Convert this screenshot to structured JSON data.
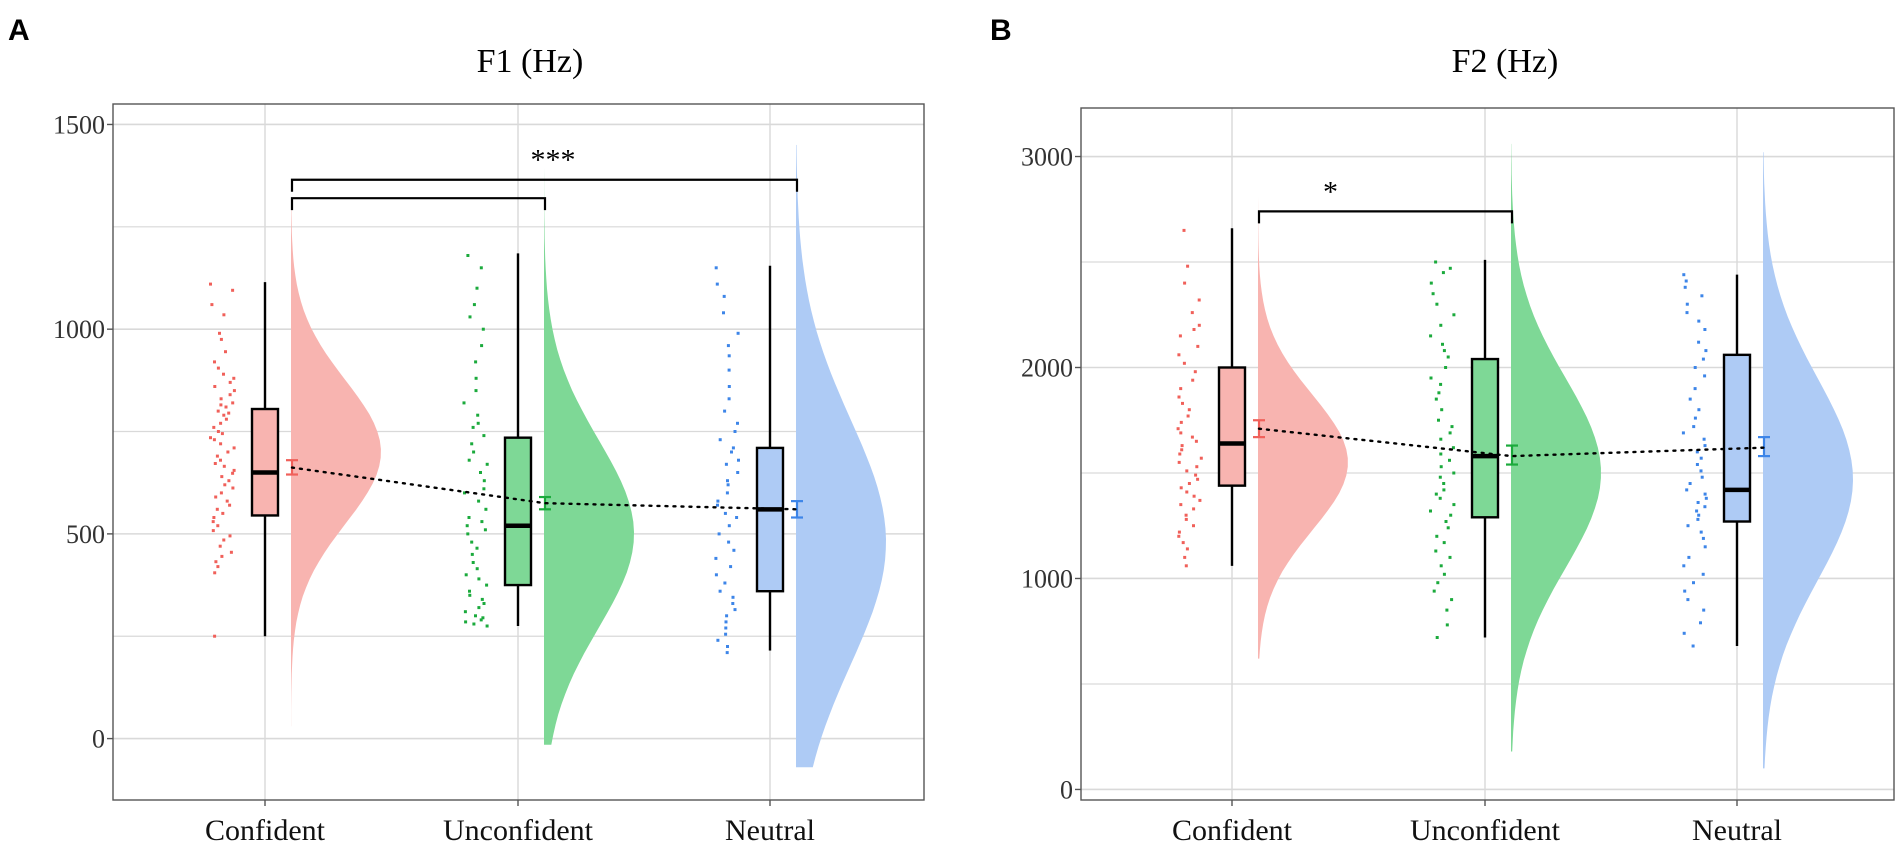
{
  "colors": {
    "confident": "#F0605A",
    "unconfident": "#1BAA3C",
    "neutral": "#3D85E8",
    "confident_fill": "#F8B4B0",
    "unconfident_fill": "#7ED896",
    "neutral_fill": "#AECBF5",
    "grid": "#d9d9d9"
  },
  "chart_data": [
    {
      "type": "raincloud",
      "panel_label": "A",
      "title": "F1 (Hz)",
      "xlabel": "",
      "ylabel": "",
      "ylim": [
        -150,
        1550
      ],
      "yticks": [
        0,
        500,
        1000,
        1500
      ],
      "ytick_labels": [
        "0",
        "500",
        "1000",
        "1500"
      ],
      "minor_gridlines": [
        250,
        750,
        1250
      ],
      "grid": true,
      "categories": [
        "Confident",
        "Unconfident",
        "Neutral"
      ],
      "series": [
        {
          "name": "Confident",
          "box": {
            "whisker_low": 250,
            "q1": 545,
            "median": 650,
            "q3": 805,
            "whisker_high": 1115
          },
          "mean": 662,
          "ci": [
            645,
            680
          ],
          "density": {
            "min": 30,
            "max": 1300,
            "mode": 700,
            "sd": 175
          },
          "points": [
            1110,
            1095,
            1060,
            1035,
            990,
            975,
            945,
            920,
            905,
            890,
            880,
            870,
            860,
            850,
            840,
            830,
            820,
            815,
            810,
            800,
            795,
            790,
            780,
            770,
            760,
            750,
            745,
            735,
            730,
            720,
            710,
            700,
            690,
            680,
            672,
            665,
            655,
            648,
            640,
            630,
            620,
            612,
            600,
            590,
            580,
            570,
            560,
            550,
            540,
            530,
            520,
            508,
            495,
            485,
            470,
            455,
            445,
            432,
            420,
            405,
            250
          ]
        },
        {
          "name": "Unconfident",
          "box": {
            "whisker_low": 275,
            "q1": 375,
            "median": 520,
            "q3": 735,
            "whisker_high": 1185
          },
          "mean": 575,
          "ci": [
            560,
            590
          ],
          "density": {
            "min": -15,
            "max": 1470,
            "mode": 500,
            "sd": 230
          },
          "points": [
            1180,
            1150,
            1100,
            1060,
            1030,
            1000,
            960,
            920,
            880,
            850,
            820,
            790,
            770,
            760,
            740,
            720,
            700,
            680,
            670,
            650,
            630,
            610,
            600,
            580,
            560,
            540,
            530,
            520,
            510,
            500,
            480,
            465,
            450,
            430,
            415,
            400,
            390,
            375,
            360,
            350,
            340,
            330,
            320,
            310,
            300,
            295,
            290,
            285,
            280,
            275
          ]
        },
        {
          "name": "Neutral",
          "box": {
            "whisker_low": 215,
            "q1": 360,
            "median": 560,
            "q3": 710,
            "whisker_high": 1155
          },
          "mean": 560,
          "ci": [
            540,
            580
          ],
          "density": {
            "min": -70,
            "max": 1450,
            "mode": 480,
            "sd": 300
          },
          "points": [
            1150,
            1110,
            1080,
            1040,
            990,
            960,
            935,
            900,
            860,
            830,
            800,
            770,
            750,
            730,
            710,
            700,
            680,
            670,
            650,
            630,
            620,
            600,
            580,
            570,
            550,
            540,
            520,
            500,
            480,
            460,
            440,
            420,
            400,
            380,
            360,
            345,
            330,
            315,
            300,
            285,
            270,
            255,
            240,
            225,
            210
          ]
        }
      ],
      "significance": [
        {
          "from": "Confident",
          "to": "Unconfident",
          "y": 1320,
          "label": ""
        },
        {
          "from": "Confident",
          "to": "Neutral",
          "y": 1365,
          "label": "***"
        }
      ]
    },
    {
      "type": "raincloud",
      "panel_label": "B",
      "title": "F2 (Hz)",
      "xlabel": "",
      "ylabel": "",
      "ylim": [
        -50,
        3230
      ],
      "yticks": [
        0,
        1000,
        2000,
        3000
      ],
      "ytick_labels": [
        "0",
        "1000",
        "2000",
        "3000"
      ],
      "minor_gridlines": [
        500,
        1500,
        2500
      ],
      "grid": true,
      "categories": [
        "Confident",
        "Unconfident",
        "Neutral"
      ],
      "series": [
        {
          "name": "Confident",
          "box": {
            "whisker_low": 1060,
            "q1": 1440,
            "median": 1640,
            "q3": 2000,
            "whisker_high": 2660
          },
          "mean": 1710,
          "ci": [
            1670,
            1750
          ],
          "density": {
            "min": 620,
            "max": 3100,
            "mode": 1550,
            "sd": 320
          },
          "points": [
            2650,
            2480,
            2400,
            2320,
            2260,
            2200,
            2180,
            2150,
            2100,
            2060,
            2020,
            1980,
            1940,
            1900,
            1860,
            1830,
            1800,
            1770,
            1740,
            1710,
            1690,
            1670,
            1650,
            1630,
            1610,
            1590,
            1570,
            1550,
            1530,
            1510,
            1490,
            1470,
            1450,
            1430,
            1410,
            1390,
            1370,
            1350,
            1330,
            1300,
            1280,
            1250,
            1220,
            1200,
            1170,
            1140,
            1100,
            1060
          ]
        },
        {
          "name": "Unconfident",
          "box": {
            "whisker_low": 720,
            "q1": 1290,
            "median": 1580,
            "q3": 2040,
            "whisker_high": 2510
          },
          "mean": 1580,
          "ci": [
            1540,
            1630
          ],
          "density": {
            "min": 180,
            "max": 3060,
            "mode": 1500,
            "sd": 450
          },
          "points": [
            2500,
            2470,
            2450,
            2400,
            2350,
            2300,
            2250,
            2200,
            2150,
            2110,
            2080,
            2050,
            2000,
            1950,
            1920,
            1880,
            1850,
            1800,
            1750,
            1720,
            1690,
            1660,
            1620,
            1590,
            1560,
            1530,
            1500,
            1480,
            1450,
            1420,
            1400,
            1380,
            1350,
            1320,
            1300,
            1270,
            1240,
            1200,
            1170,
            1130,
            1100,
            1060,
            1020,
            980,
            940,
            900,
            850,
            780,
            720
          ]
        },
        {
          "name": "Neutral",
          "box": {
            "whisker_low": 680,
            "q1": 1270,
            "median": 1420,
            "q3": 2060,
            "whisker_high": 2440
          },
          "mean": 1620,
          "ci": [
            1580,
            1670
          ],
          "density": {
            "min": 100,
            "max": 3020,
            "mode": 1470,
            "sd": 480
          },
          "points": [
            2440,
            2410,
            2380,
            2340,
            2300,
            2260,
            2220,
            2180,
            2120,
            2080,
            2040,
            2000,
            1960,
            1900,
            1850,
            1800,
            1760,
            1720,
            1690,
            1660,
            1630,
            1600,
            1570,
            1540,
            1510,
            1480,
            1450,
            1420,
            1400,
            1380,
            1360,
            1340,
            1320,
            1300,
            1280,
            1250,
            1220,
            1190,
            1150,
            1100,
            1060,
            1020,
            980,
            940,
            900,
            850,
            790,
            740,
            680
          ]
        }
      ],
      "significance": [
        {
          "from": "Confident",
          "to": "Unconfident",
          "y": 2740,
          "label": "*"
        }
      ]
    }
  ]
}
